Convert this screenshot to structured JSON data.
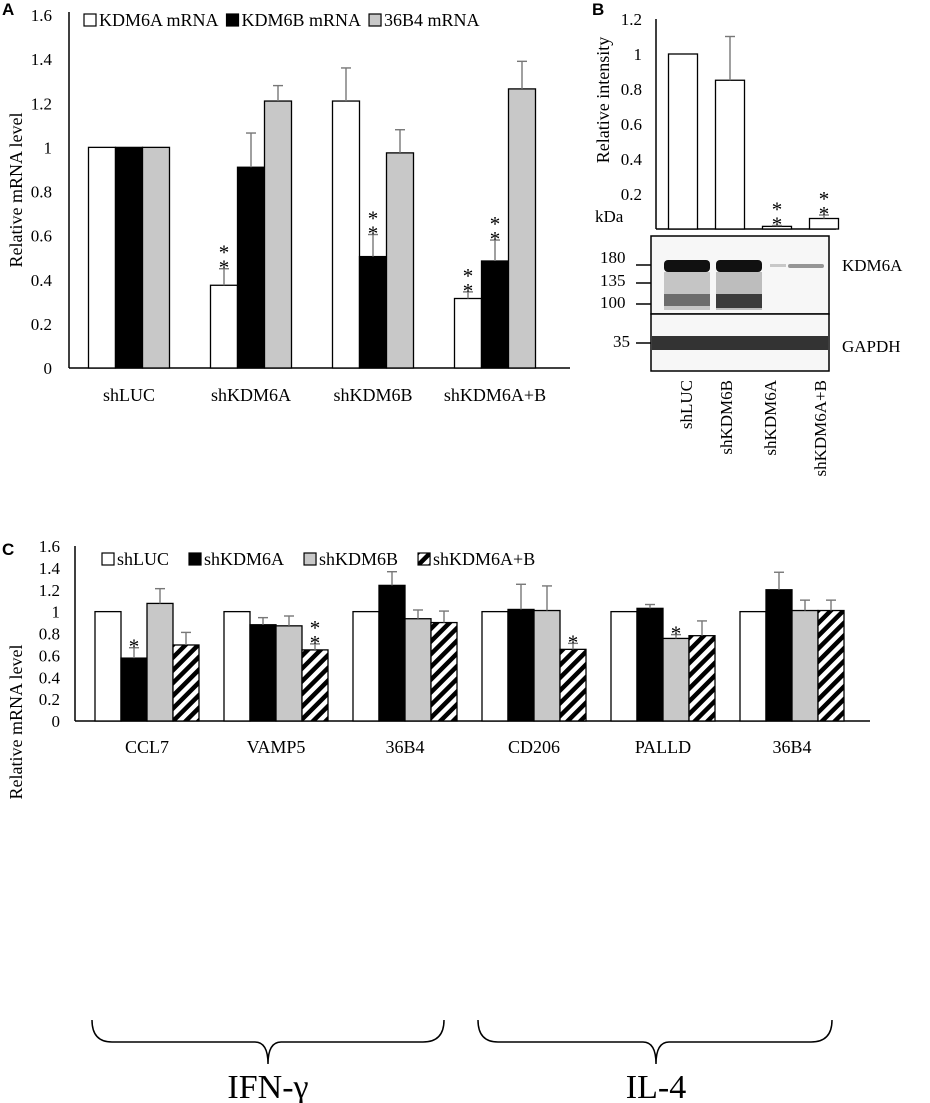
{
  "figure": {
    "blot": {
      "kda_label": "kDa",
      "markers": [
        "180",
        "135",
        "100",
        "35"
      ],
      "protein_labels": [
        "KDM6A",
        "GAPDH"
      ],
      "lanes": [
        "shLUC",
        "shKDM6B",
        "shKDM6A",
        "shKDM6A+B"
      ]
    }
  },
  "chart_data": [
    {
      "panel": "A",
      "type": "bar",
      "title": "",
      "xlabel": "",
      "ylabel": "Relative mRNA level",
      "ylim": [
        0,
        1.6
      ],
      "yticks": [
        "0",
        "0.2",
        "0.4",
        "0.6",
        "0.8",
        "1",
        "1.2",
        "1.4",
        "1.6"
      ],
      "categories": [
        "shLUC",
        "shKDM6A",
        "shKDM6B",
        "shKDM6A+B"
      ],
      "series": [
        {
          "name": "KDM6A mRNA",
          "fill": "#ffffff",
          "values": [
            1.0,
            0.375,
            1.21,
            0.315
          ],
          "errors": [
            0,
            0.075,
            0.15,
            0.03
          ],
          "sig": [
            "",
            "**",
            "",
            "**"
          ]
        },
        {
          "name": "KDM6B mRNA",
          "fill": "#000000",
          "values": [
            1.0,
            0.91,
            0.505,
            0.485
          ],
          "errors": [
            0,
            0.155,
            0.1,
            0.095
          ],
          "sig": [
            "",
            "",
            "**",
            "**"
          ]
        },
        {
          "name": "36B4 mRNA",
          "fill": "#c8c8c8",
          "values": [
            1.0,
            1.21,
            0.975,
            1.265
          ],
          "errors": [
            0,
            0.07,
            0.105,
            0.125
          ],
          "sig": [
            "",
            "",
            "",
            ""
          ]
        }
      ]
    },
    {
      "panel": "B",
      "type": "bar",
      "title": "",
      "xlabel": "",
      "ylabel": "Relative intensity",
      "ylim": [
        0,
        1.2
      ],
      "yticks": [
        "0.2",
        "0.4",
        "0.6",
        "0.8",
        "1",
        "1.2"
      ],
      "categories": [
        "shLUC",
        "shKDM6B",
        "shKDM6A",
        "shKDM6A+B"
      ],
      "series": [
        {
          "name": "KDM6A protein",
          "fill": "#ffffff",
          "values": [
            1.0,
            0.85,
            0.015,
            0.06
          ],
          "errors": [
            0,
            0.25,
            0.005,
            0.02
          ],
          "sig": [
            "",
            "",
            "**",
            "**"
          ]
        }
      ]
    },
    {
      "panel": "C",
      "type": "bar",
      "title": "",
      "xlabel": "",
      "ylabel": "Relative mRNA level",
      "ylim": [
        0,
        1.6
      ],
      "yticks": [
        "0",
        "0.2",
        "0.4",
        "0.6",
        "0.8",
        "1",
        "1.2",
        "1.4",
        "1.6"
      ],
      "categories": [
        "CCL7",
        "VAMP5",
        "36B4",
        "CD206",
        "PALLD",
        "36B4"
      ],
      "groups": [
        {
          "label": "IFN-γ",
          "categories": [
            0,
            1,
            2
          ]
        },
        {
          "label": "IL-4",
          "categories": [
            3,
            4,
            5
          ]
        }
      ],
      "series": [
        {
          "name": "shLUC",
          "fill": "#ffffff",
          "values": [
            1.0,
            1.0,
            1.0,
            1.0,
            1.0,
            1.0
          ],
          "errors": [
            0,
            0,
            0,
            0,
            0,
            0
          ],
          "sig": [
            "",
            "",
            "",
            "",
            "",
            ""
          ]
        },
        {
          "name": "shKDM6A",
          "fill": "#000000",
          "values": [
            0.575,
            0.88,
            1.24,
            1.02,
            1.03,
            1.2
          ],
          "errors": [
            0.095,
            0.065,
            0.125,
            0.23,
            0.035,
            0.16
          ],
          "sig": [
            "*",
            "",
            "",
            "",
            "",
            ""
          ]
        },
        {
          "name": "shKDM6B",
          "fill": "#c8c8c8",
          "values": [
            1.075,
            0.87,
            0.935,
            1.01,
            0.755,
            1.01
          ],
          "errors": [
            0.135,
            0.09,
            0.08,
            0.225,
            0.035,
            0.095
          ],
          "sig": [
            "",
            "",
            "",
            "",
            "*",
            ""
          ]
        },
        {
          "name": "shKDM6A+B",
          "fill": "hatch",
          "values": [
            0.695,
            0.65,
            0.9,
            0.655,
            0.78,
            1.01
          ],
          "errors": [
            0.115,
            0.055,
            0.105,
            0.055,
            0.135,
            0.095
          ],
          "sig": [
            "",
            "**",
            "",
            "*",
            "",
            ""
          ]
        }
      ]
    }
  ]
}
